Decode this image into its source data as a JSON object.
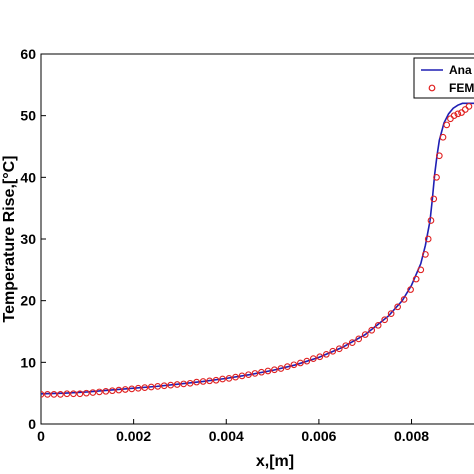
{
  "chart_data": {
    "type": "line",
    "title": "",
    "xlabel": "x,[m]",
    "ylabel": "Temperature Rise,[°C]",
    "xlim": [
      0,
      0.0095
    ],
    "ylim": [
      0,
      60
    ],
    "grid": false,
    "legend_position": "top-right",
    "x_ticks": [
      "0",
      "0.002",
      "0.004",
      "0.006",
      "0.008"
    ],
    "x_tick_values": [
      0,
      0.002,
      0.004,
      0.006,
      0.008
    ],
    "y_ticks": [
      "0",
      "10",
      "20",
      "30",
      "40",
      "50",
      "60"
    ],
    "y_tick_values": [
      0,
      10,
      20,
      30,
      40,
      50,
      60
    ],
    "series": [
      {
        "name": "Ana",
        "style": "line",
        "color": "#1f1fb4",
        "x": [
          0,
          0.0005,
          0.001,
          0.0015,
          0.002,
          0.0025,
          0.003,
          0.0035,
          0.004,
          0.0045,
          0.005,
          0.0055,
          0.006,
          0.0065,
          0.007,
          0.0075,
          0.0078,
          0.008,
          0.0082,
          0.0083,
          0.0084,
          0.00845,
          0.0085,
          0.00855,
          0.0086,
          0.0087,
          0.0088,
          0.0089,
          0.009,
          0.0091,
          0.0092,
          0.0094
        ],
        "values": [
          4.9,
          5.0,
          5.2,
          5.5,
          5.8,
          6.1,
          6.5,
          6.9,
          7.4,
          8.0,
          8.7,
          9.6,
          10.8,
          12.4,
          14.5,
          17.5,
          20.0,
          22.5,
          26.0,
          29.0,
          33.0,
          36.5,
          40.5,
          43.5,
          46.0,
          48.8,
          50.3,
          51.2,
          51.7,
          52.0,
          52.0,
          52.0
        ]
      },
      {
        "name": "FEM",
        "style": "markers",
        "color": "#e02020",
        "x": [
          0,
          0.00014,
          0.00028,
          0.00042,
          0.00056,
          0.0007,
          0.00084,
          0.00098,
          0.00112,
          0.00126,
          0.0014,
          0.00154,
          0.00168,
          0.00182,
          0.00196,
          0.0021,
          0.00224,
          0.00238,
          0.00252,
          0.00266,
          0.0028,
          0.00294,
          0.00308,
          0.00322,
          0.00336,
          0.0035,
          0.00364,
          0.00378,
          0.00392,
          0.00406,
          0.0042,
          0.00434,
          0.00448,
          0.00462,
          0.00476,
          0.0049,
          0.00504,
          0.00518,
          0.00532,
          0.00546,
          0.0056,
          0.00574,
          0.00588,
          0.00602,
          0.00616,
          0.0063,
          0.00644,
          0.00658,
          0.00672,
          0.00686,
          0.007,
          0.00714,
          0.00728,
          0.00742,
          0.00756,
          0.0077,
          0.00784,
          0.00798,
          0.0081,
          0.0082,
          0.0083,
          0.00836,
          0.00842,
          0.00848,
          0.00854,
          0.0086,
          0.00868,
          0.00876,
          0.00884,
          0.00892,
          0.009,
          0.00908,
          0.00916,
          0.00924
        ],
        "values": [
          4.8,
          4.8,
          4.8,
          4.8,
          4.9,
          4.9,
          4.9,
          5.0,
          5.1,
          5.2,
          5.3,
          5.4,
          5.5,
          5.6,
          5.7,
          5.8,
          5.9,
          6.0,
          6.1,
          6.2,
          6.3,
          6.4,
          6.5,
          6.6,
          6.8,
          6.9,
          7.0,
          7.1,
          7.3,
          7.4,
          7.6,
          7.8,
          8.0,
          8.2,
          8.4,
          8.6,
          8.8,
          9.0,
          9.3,
          9.6,
          9.9,
          10.2,
          10.6,
          10.9,
          11.3,
          11.8,
          12.2,
          12.7,
          13.2,
          13.8,
          14.5,
          15.2,
          16.0,
          16.9,
          17.9,
          19.0,
          20.2,
          21.8,
          23.5,
          25.0,
          27.5,
          30.0,
          33.0,
          36.5,
          40.0,
          43.5,
          46.5,
          48.5,
          49.5,
          50.0,
          50.3,
          50.5,
          51.0,
          51.5
        ]
      }
    ]
  }
}
